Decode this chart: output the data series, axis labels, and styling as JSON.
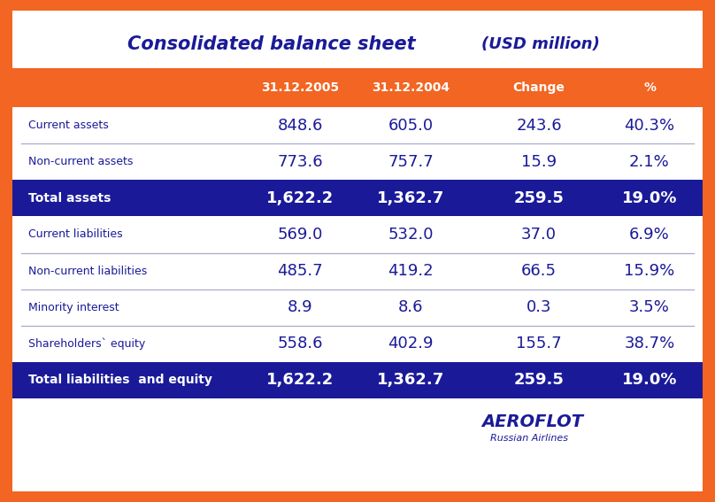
{
  "title_left": "Consolidated balance sheet",
  "title_right": "(USD million)",
  "bg_orange": "#F26522",
  "bg_white": "#FFFFFF",
  "header_bg": "#F26522",
  "total_row_bg": "#1A1A99",
  "header_text_color": "#FFFFFF",
  "total_text_color": "#FFFFFF",
  "normal_val_color": "#1A1A99",
  "label_color": "#1A1A99",
  "divider_color": "#AAAACC",
  "title_color": "#1A1A99",
  "columns": [
    "31.12.2005",
    "31.12.2004",
    "Change",
    "%"
  ],
  "rows": [
    {
      "label": "Current assets",
      "vals": [
        "848.6",
        "605.0",
        "243.6",
        "40.3%"
      ],
      "is_total": false
    },
    {
      "label": "Non-current assets",
      "vals": [
        "773.6",
        "757.7",
        "15.9",
        "2.1%"
      ],
      "is_total": false
    },
    {
      "label": "Total assets",
      "vals": [
        "1,622.2",
        "1,362.7",
        "259.5",
        "19.0%"
      ],
      "is_total": true
    },
    {
      "label": "Current liabilities",
      "vals": [
        "569.0",
        "532.0",
        "37.0",
        "6.9%"
      ],
      "is_total": false
    },
    {
      "label": "Non-current liabilities",
      "vals": [
        "485.7",
        "419.2",
        "66.5",
        "15.9%"
      ],
      "is_total": false
    },
    {
      "label": "Minority interest",
      "vals": [
        "8.9",
        "8.6",
        "0.3",
        "3.5%"
      ],
      "is_total": false
    },
    {
      "label": "Shareholders` equity",
      "vals": [
        "558.6",
        "402.9",
        "155.7",
        "38.7%"
      ],
      "is_total": false
    },
    {
      "label": "Total liabilities  and equity",
      "vals": [
        "1,622.2",
        "1,362.7",
        "259.5",
        "19.0%"
      ],
      "is_total": true
    }
  ],
  "fig_width": 8.08,
  "fig_height": 5.67,
  "dpi": 100
}
